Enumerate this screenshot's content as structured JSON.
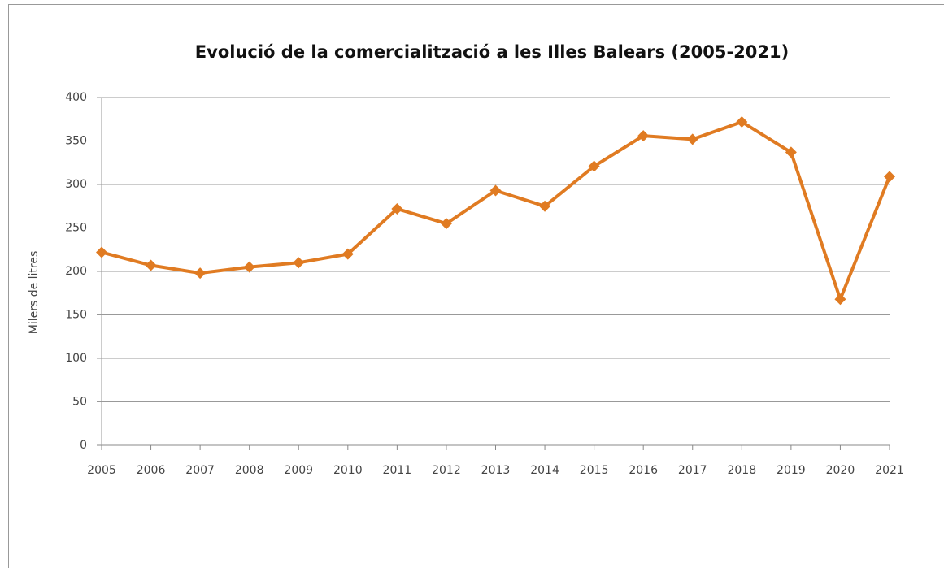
{
  "chart_data": {
    "type": "line",
    "title": "Evolució de la comercialització a les Illes Balears (2005-2021)",
    "y_label": "Milers de litres",
    "categories": [
      "2005",
      "2006",
      "2007",
      "2008",
      "2009",
      "2010",
      "2011",
      "2012",
      "2013",
      "2014",
      "2015",
      "2016",
      "2017",
      "2018",
      "2019",
      "2020",
      "2021"
    ],
    "series": [
      {
        "name": "Milers de litres",
        "color": "#e07b22",
        "values": [
          222,
          207,
          198,
          205,
          210,
          220,
          272,
          255,
          293,
          275,
          321,
          356,
          352,
          372,
          337,
          168,
          309
        ]
      }
    ],
    "ylim": [
      0,
      400
    ],
    "yticks": [
      0,
      50,
      100,
      150,
      200,
      250,
      300,
      350,
      400
    ],
    "grid": true
  }
}
